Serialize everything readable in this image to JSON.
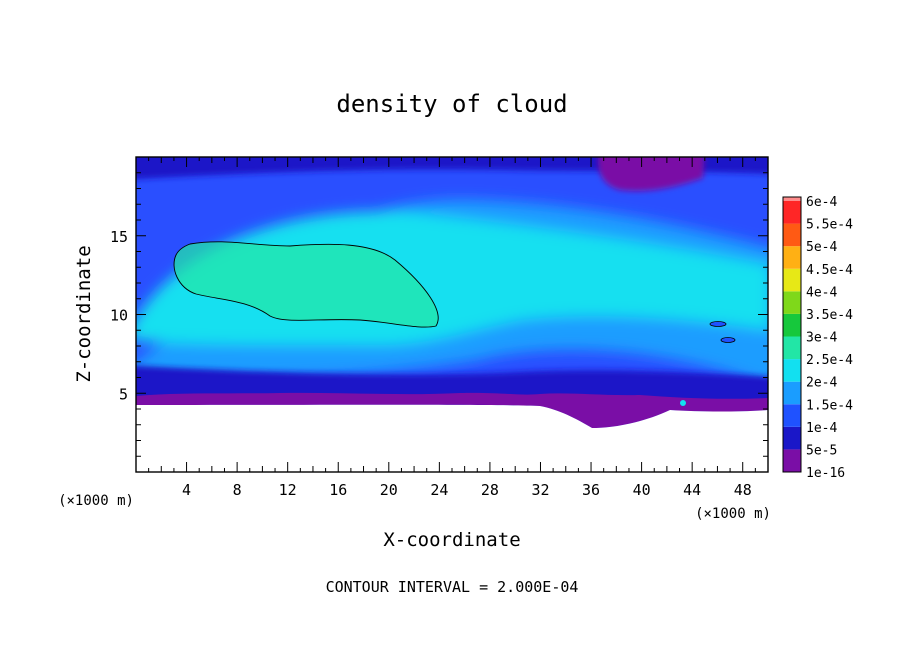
{
  "chart_data": {
    "type": "heatmap",
    "title": "density of cloud",
    "xlabel": "X-coordinate",
    "ylabel": "Z-coordinate",
    "x_unit_label": "(×1000 m)",
    "y_unit_label": "(×1000 m)",
    "xlim": [
      0,
      50
    ],
    "ylim": [
      0,
      20
    ],
    "x_ticks": [
      4,
      8,
      12,
      16,
      20,
      24,
      28,
      32,
      36,
      40,
      44,
      48
    ],
    "y_ticks": [
      5,
      10,
      15
    ],
    "footer": "CONTOUR INTERVAL = 2.000E-04",
    "contour_interval": 0.0002,
    "colorbar": {
      "levels": [
        {
          "label": "1e-16",
          "color": "#7a0ea6"
        },
        {
          "label": "5e-5",
          "color": "#1a17c8"
        },
        {
          "label": "1e-4",
          "color": "#1f52ff"
        },
        {
          "label": "1.5e-4",
          "color": "#1a9dff"
        },
        {
          "label": "2e-4",
          "color": "#12e0f0"
        },
        {
          "label": "2.5e-4",
          "color": "#22e6a6"
        },
        {
          "label": "3e-4",
          "color": "#16c83c"
        },
        {
          "label": "3.5e-4",
          "color": "#7fd81a"
        },
        {
          "label": "4e-4",
          "color": "#e7e816"
        },
        {
          "label": "4.5e-4",
          "color": "#ffb014"
        },
        {
          "label": "5e-4",
          "color": "#ff5a14"
        },
        {
          "label": "5.5e-4",
          "color": "#ff2626"
        },
        {
          "label": "6e-4",
          "color": "#ff8c8c"
        }
      ]
    },
    "regions": [
      {
        "name": "cloud-base-band",
        "level": "1e-16",
        "x_range": [
          0,
          50
        ],
        "z_range": [
          4.3,
          5.2
        ]
      },
      {
        "name": "upper-dry-patch",
        "level": "1e-16",
        "x_range": [
          36.5,
          44.5
        ],
        "z_range": [
          18,
          20
        ]
      },
      {
        "name": "main-core",
        "level": "2.5e-4",
        "x_range": [
          3,
          24
        ],
        "z_range": [
          9.3,
          14.7
        ],
        "contour": "2e-4"
      }
    ]
  }
}
